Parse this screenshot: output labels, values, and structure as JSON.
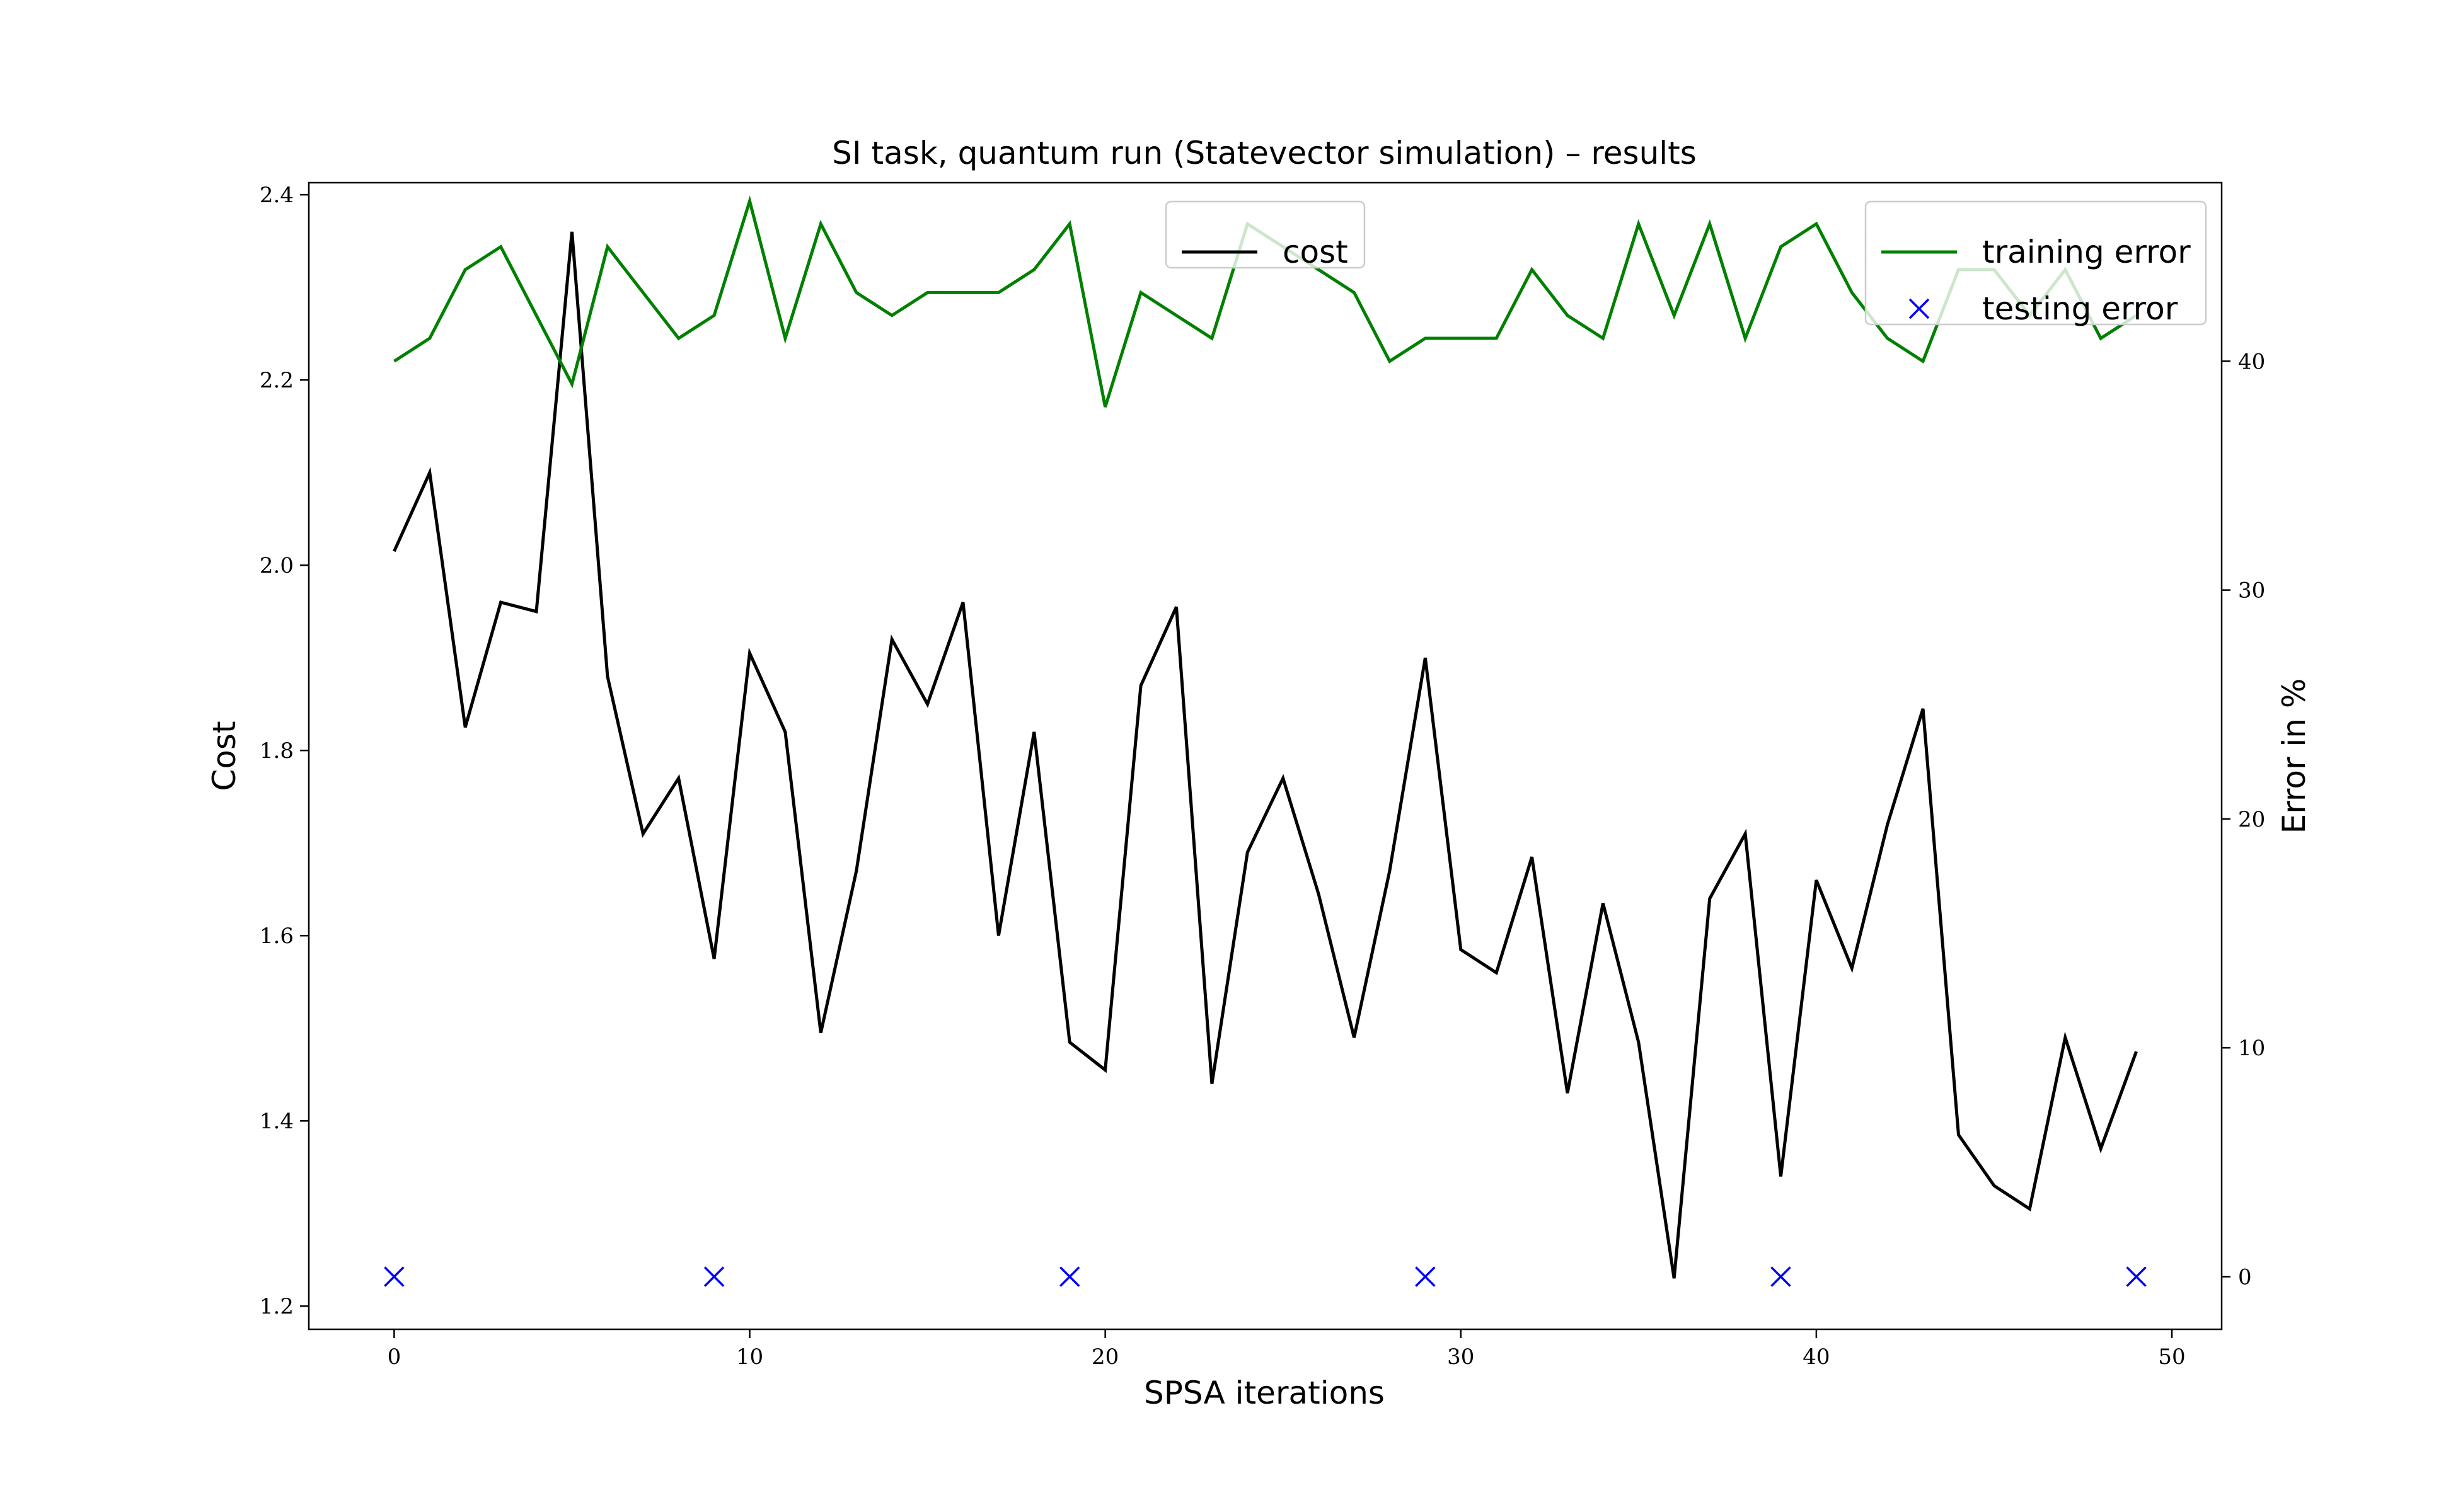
{
  "chart_data": {
    "type": "line",
    "title": "SI task, quantum run (Statevector simulation) – results",
    "xlabel": "SPSA iterations",
    "ylabel": "Cost",
    "ylabel_right": "Error in %",
    "xlim": [
      -2.4,
      51.4
    ],
    "ylim": [
      1.175,
      2.413
    ],
    "ylim_right": [
      -2.3,
      47.8
    ],
    "x_ticks": [
      0,
      10,
      20,
      30,
      40,
      50
    ],
    "y_ticks": [
      1.2,
      1.4,
      1.6,
      1.8,
      2.0,
      2.2,
      2.4
    ],
    "y_ticks_right": [
      0,
      10,
      20,
      30,
      40
    ],
    "grid": false,
    "legends": [
      {
        "placement": "top-center",
        "entries": [
          "cost"
        ]
      },
      {
        "placement": "top-right",
        "entries": [
          "training error",
          "testing error"
        ]
      }
    ],
    "series": [
      {
        "name": "cost",
        "axis": "left",
        "style": "line",
        "color": "#000000",
        "x": [
          0,
          1,
          2,
          3,
          4,
          5,
          6,
          7,
          8,
          9,
          10,
          11,
          12,
          13,
          14,
          15,
          16,
          17,
          18,
          19,
          20,
          21,
          22,
          23,
          24,
          25,
          26,
          27,
          28,
          29,
          30,
          31,
          32,
          33,
          34,
          35,
          36,
          37,
          38,
          39,
          40,
          41,
          42,
          43,
          44,
          45,
          46,
          47,
          48,
          49
        ],
        "values": [
          2.015,
          2.1,
          1.825,
          1.96,
          1.95,
          2.36,
          1.88,
          1.71,
          1.77,
          1.575,
          1.905,
          1.82,
          1.495,
          1.67,
          1.92,
          1.85,
          1.96,
          1.6,
          1.82,
          1.485,
          1.455,
          1.87,
          1.955,
          1.44,
          1.69,
          1.77,
          1.645,
          1.49,
          1.67,
          1.9,
          1.585,
          1.56,
          1.685,
          1.43,
          1.635,
          1.485,
          1.23,
          1.64,
          1.71,
          1.34,
          1.66,
          1.565,
          1.72,
          1.845,
          1.385,
          1.33,
          1.305,
          1.49,
          1.37,
          1.475
        ]
      },
      {
        "name": "training error",
        "axis": "right",
        "style": "line",
        "color": "#008000",
        "x": [
          0,
          1,
          2,
          3,
          4,
          5,
          6,
          7,
          8,
          9,
          10,
          11,
          12,
          13,
          14,
          15,
          16,
          17,
          18,
          19,
          20,
          21,
          22,
          23,
          24,
          25,
          26,
          27,
          28,
          29,
          30,
          31,
          32,
          33,
          34,
          35,
          36,
          37,
          38,
          39,
          40,
          41,
          42,
          43,
          44,
          45,
          46,
          47,
          48,
          49
        ],
        "values": [
          40,
          41,
          44,
          45,
          42,
          39,
          45,
          43,
          41,
          42,
          47,
          41,
          46,
          43,
          42,
          43,
          43,
          43,
          44,
          46,
          38,
          43,
          42,
          41,
          46,
          45,
          44,
          43,
          40,
          41,
          41,
          41,
          44,
          42,
          41,
          46,
          42,
          46,
          41,
          45,
          46,
          43,
          41,
          40,
          44,
          44,
          42,
          44,
          41,
          42
        ]
      },
      {
        "name": "testing error",
        "axis": "right",
        "style": "marker-x",
        "color": "#0000ff",
        "x": [
          0,
          9,
          19,
          29,
          39,
          49
        ],
        "values": [
          0,
          0,
          0,
          0,
          0,
          0
        ]
      }
    ]
  }
}
